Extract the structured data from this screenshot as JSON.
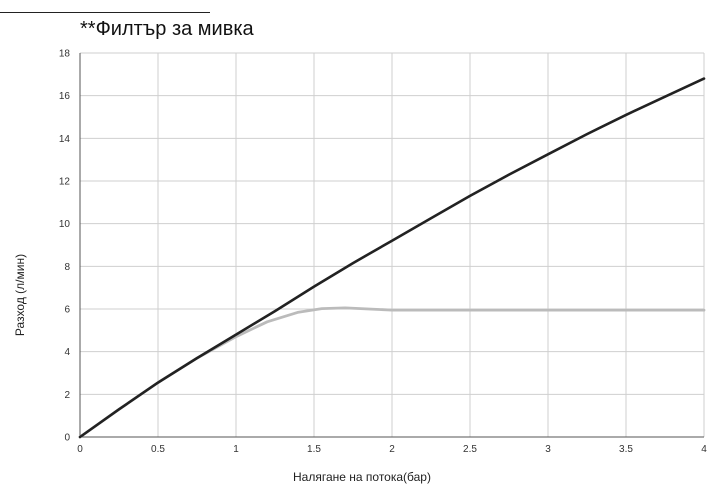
{
  "title": "**Филтър за мивка",
  "chart_data": {
    "type": "line",
    "title": "**Филтър за мивка",
    "xlabel": "Налягане на потока(бар)",
    "ylabel": "Разход (л/мин)",
    "xlim": [
      0,
      4
    ],
    "ylim": [
      0,
      18
    ],
    "xticks": [
      "0",
      "0.5",
      "1",
      "1.5",
      "2",
      "2.5",
      "3",
      "3.5",
      "4"
    ],
    "yticks": [
      "0",
      "2",
      "4",
      "6",
      "8",
      "10",
      "12",
      "14",
      "16",
      "18"
    ],
    "grid": true,
    "series": [
      {
        "color": "#222222",
        "x": [
          0,
          0.25,
          0.5,
          0.75,
          1,
          1.25,
          1.5,
          1.75,
          2,
          2.25,
          2.5,
          2.75,
          3,
          3.25,
          3.5,
          3.75,
          4
        ],
        "y": [
          0,
          1.3,
          2.55,
          3.7,
          4.8,
          5.9,
          7.05,
          8.15,
          9.2,
          10.25,
          11.3,
          12.3,
          13.25,
          14.2,
          15.1,
          15.95,
          16.8
        ]
      },
      {
        "color": "#bbbbbb",
        "x": [
          0,
          0.25,
          0.5,
          0.75,
          1,
          1.2,
          1.4,
          1.55,
          1.7,
          1.85,
          2,
          2.5,
          3,
          3.5,
          4
        ],
        "y": [
          0,
          1.3,
          2.55,
          3.7,
          4.7,
          5.4,
          5.85,
          6.02,
          6.05,
          6.0,
          5.95,
          5.95,
          5.95,
          5.95,
          5.95
        ]
      }
    ]
  }
}
